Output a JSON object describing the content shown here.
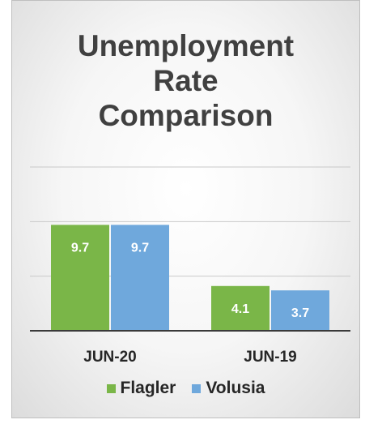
{
  "chart_data": {
    "type": "bar",
    "title": [
      "Unemployment",
      "Rate",
      "Comparison"
    ],
    "categories": [
      "JUN-20",
      "JUN-19"
    ],
    "series": [
      {
        "name": "Flagler",
        "values": [
          9.7,
          4.1
        ],
        "color": "#7ab648"
      },
      {
        "name": "Volusia",
        "values": [
          9.7,
          3.7
        ],
        "color": "#6fa8dc"
      }
    ],
    "ylim": [
      0,
      15
    ],
    "grid": true,
    "data_labels": [
      "9.7",
      "4.1",
      "9.7",
      "3.7"
    ],
    "legend_position": "bottom"
  }
}
